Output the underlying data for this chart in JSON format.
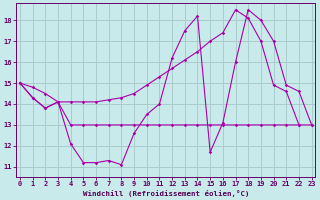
{
  "bg_color": "#c8eaea",
  "grid_color": "#aacccc",
  "line_color": "#aa00aa",
  "xlabel": "Windchill (Refroidissement éolien,°C)",
  "xlim": [
    -0.3,
    23.3
  ],
  "ylim": [
    10.5,
    18.8
  ],
  "yticks": [
    11,
    12,
    13,
    14,
    15,
    16,
    17,
    18
  ],
  "xticks": [
    0,
    1,
    2,
    3,
    4,
    5,
    6,
    7,
    8,
    9,
    10,
    11,
    12,
    13,
    14,
    15,
    16,
    17,
    18,
    19,
    20,
    21,
    22,
    23
  ],
  "series1": [
    15.0,
    14.3,
    13.8,
    14.1,
    12.1,
    11.2,
    11.2,
    11.3,
    11.1,
    12.6,
    13.5,
    14.0,
    16.2,
    17.5,
    18.2,
    11.7,
    13.1,
    16.0,
    18.5,
    18.0,
    17.0,
    14.9,
    14.6,
    13.0
  ],
  "series2": [
    15.0,
    14.3,
    13.8,
    14.1,
    13.0,
    13.0,
    13.0,
    13.0,
    13.0,
    13.0,
    13.0,
    13.0,
    13.0,
    13.0,
    13.0,
    13.0,
    13.0,
    13.0,
    13.0,
    13.0,
    13.0,
    13.0,
    13.0,
    13.0
  ],
  "series3": [
    15.0,
    14.8,
    14.5,
    14.1,
    14.1,
    14.1,
    14.1,
    14.2,
    14.3,
    14.5,
    14.9,
    15.3,
    15.7,
    16.1,
    16.5,
    17.0,
    17.4,
    18.5,
    18.1,
    17.0,
    14.9,
    14.6,
    13.0,
    13.0
  ]
}
